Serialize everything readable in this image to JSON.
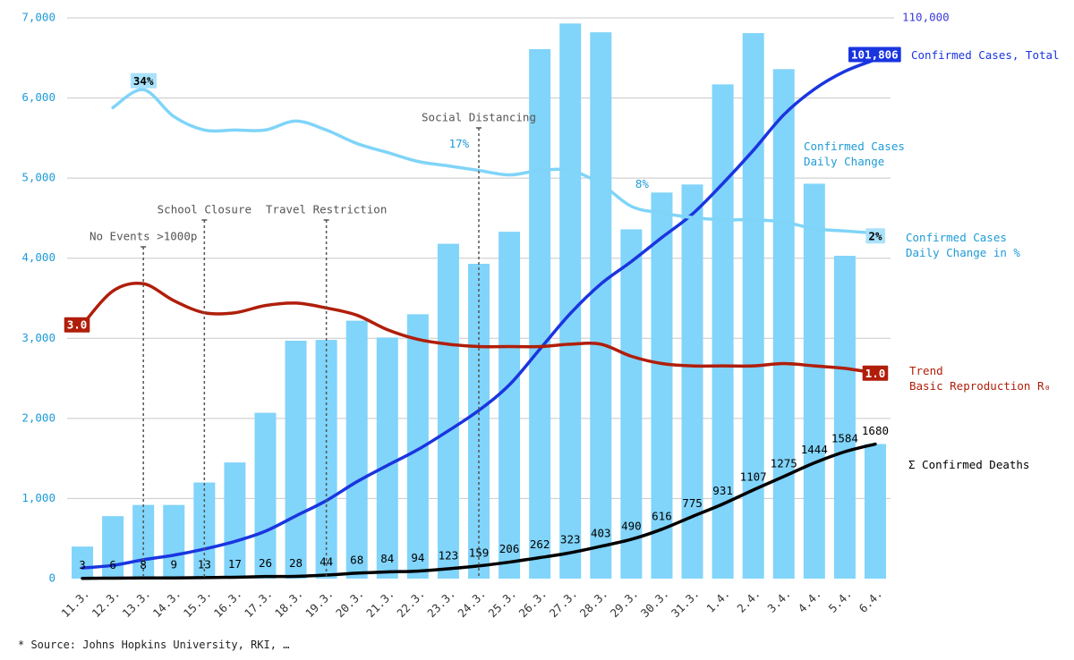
{
  "chart_data": {
    "type": "bar",
    "categories": [
      "11.3.",
      "12.3.",
      "13.3.",
      "14.3.",
      "15.3.",
      "16.3.",
      "17.3.",
      "18.3.",
      "19.3.",
      "20.3.",
      "21.3.",
      "22.3.",
      "23.3.",
      "24.3.",
      "25.3.",
      "26.3.",
      "27.3.",
      "28.3.",
      "29.3.",
      "30.3.",
      "31.3.",
      "1.4.",
      "2.4.",
      "3.4.",
      "4.4.",
      "5.4.",
      "6.4."
    ],
    "ylim": [
      0,
      7000
    ],
    "yticks": [
      0,
      {
        "value": 1000,
        "label": "1,000"
      },
      {
        "value": 2000,
        "label": "2,000"
      },
      {
        "value": 3000,
        "label": "3,000"
      },
      {
        "value": 4000,
        "label": "4,000"
      },
      {
        "value": 5000,
        "label": "5,000"
      },
      {
        "value": 6000,
        "label": "6,000"
      },
      {
        "value": 7000,
        "label": "7,000"
      }
    ],
    "y2lim": [
      0,
      110000
    ],
    "y2ticks": [
      {
        "value": 110000,
        "label": "110,000"
      }
    ],
    "y3lim": [
      -75,
      50
    ],
    "y4lim": [
      -7.5,
      15.7
    ],
    "grid": true,
    "series": [
      {
        "name": "Confirmed Cases\nDaily Change",
        "type": "bar",
        "color": "#81d4fa",
        "values": [
          400,
          780,
          920,
          920,
          1200,
          1450,
          2070,
          2970,
          2980,
          3220,
          3010,
          3300,
          4180,
          3930,
          4330,
          6610,
          6930,
          6820,
          4360,
          4820,
          4920,
          6170,
          6810,
          6360,
          4930,
          4030,
          1680
        ]
      },
      {
        "name": "Confirmed Cases, Total",
        "type": "line",
        "axis": "y2",
        "color": "#1a35e0",
        "values": [
          2100,
          2600,
          3700,
          4600,
          5800,
          7300,
          9300,
          12300,
          15300,
          19000,
          22200,
          25300,
          29000,
          33000,
          38000,
          45000,
          52000,
          57800,
          62200,
          66900,
          71500,
          77500,
          84000,
          91000,
          96000,
          99500,
          101806
        ],
        "value_labels": [
          null,
          null,
          null,
          null,
          null,
          null,
          null,
          null,
          null,
          null,
          null,
          null,
          null,
          null,
          null,
          null,
          null,
          null,
          null,
          null,
          null,
          null,
          null,
          null,
          null,
          null,
          "101,806"
        ]
      },
      {
        "name": "Confirmed Cases\nDaily Change in %",
        "type": "line",
        "axis": "y3",
        "color": "#7fd4f8",
        "values": [
          null,
          30,
          34,
          28,
          25,
          25,
          25,
          27,
          25,
          22,
          20,
          18,
          17,
          16,
          15,
          16,
          16,
          13,
          8,
          6.5,
          5.5,
          5,
          5,
          4.5,
          3,
          2.5,
          2
        ],
        "value_labels": [
          null,
          null,
          "34%",
          null,
          null,
          null,
          null,
          null,
          null,
          null,
          null,
          null,
          "17%",
          null,
          null,
          null,
          null,
          null,
          "8%",
          null,
          null,
          null,
          null,
          null,
          null,
          null,
          "2%"
        ]
      },
      {
        "name": "Trend\nBasic Reproduction R₀",
        "type": "line",
        "axis": "y4",
        "color": "#b01e0a",
        "values": [
          3,
          4.4,
          4.7,
          4,
          3.5,
          3.5,
          3.8,
          3.9,
          3.7,
          3.4,
          2.8,
          2.4,
          2.2,
          2.1,
          2.1,
          2.1,
          2.2,
          2.2,
          1.7,
          1.4,
          1.3,
          1.3,
          1.3,
          1.4,
          1.3,
          1.2,
          1
        ],
        "value_labels": [
          "3.0",
          null,
          null,
          null,
          null,
          null,
          null,
          null,
          null,
          null,
          null,
          null,
          null,
          null,
          null,
          null,
          null,
          null,
          null,
          null,
          null,
          null,
          null,
          null,
          null,
          null,
          "1.0"
        ]
      },
      {
        "name": "Σ Confirmed Deaths",
        "type": "line",
        "color": "#000000",
        "values": [
          3,
          6,
          8,
          9,
          13,
          17,
          26,
          28,
          44,
          68,
          84,
          94,
          123,
          159,
          206,
          262,
          323,
          403,
          490,
          616,
          775,
          931,
          1107,
          1275,
          1444,
          1584,
          1680
        ]
      }
    ],
    "annotations": [
      {
        "text": "No Events >1000p",
        "category": "13.3."
      },
      {
        "text": "School Closure",
        "category": "15.3."
      },
      {
        "text": "Travel Restriction",
        "category": "19.3."
      },
      {
        "text": "Social Distancing",
        "category": "24.3."
      }
    ],
    "source": "* Source: Johns Hopkins University, RKI, …"
  }
}
